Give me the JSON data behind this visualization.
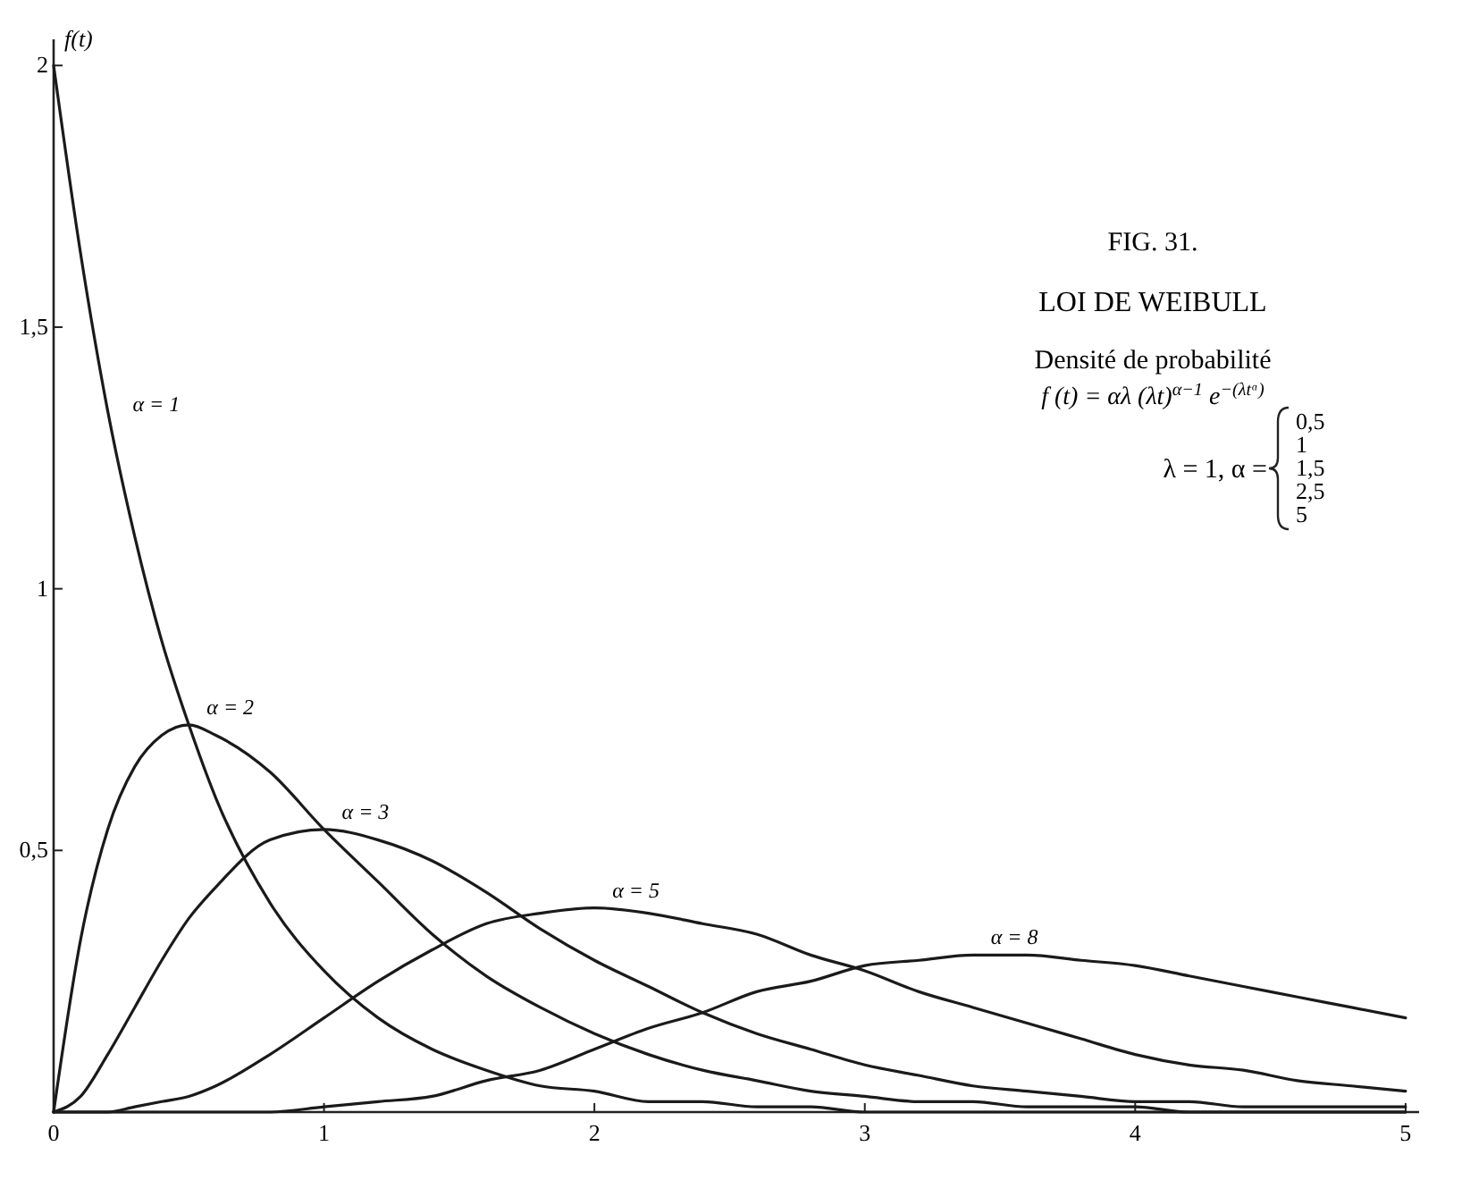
{
  "chart_data": {
    "type": "line",
    "title": "LOI DE WEIBULL",
    "subtitle": "Densité de probabilité",
    "ylabel": "f(t)",
    "x": [
      0,
      0.1,
      0.2,
      0.3,
      0.4,
      0.5,
      0.6,
      0.8,
      1,
      1.2,
      1.4,
      1.6,
      1.8,
      2,
      2.2,
      2.4,
      2.6,
      2.8,
      3,
      3.2,
      3.4,
      3.6,
      3.8,
      4,
      4.2,
      4.4,
      4.6,
      4.8,
      5
    ],
    "series": [
      {
        "name": "α = 1",
        "color": "#1a1a1a",
        "values": [
          2,
          1.64,
          1.34,
          1.1,
          0.9,
          0.74,
          0.6,
          0.4,
          0.27,
          0.18,
          0.12,
          0.08,
          0.05,
          0.04,
          0.02,
          0.02,
          0.01,
          0.01,
          0,
          0,
          0,
          0,
          0,
          0,
          0,
          0,
          0,
          0,
          0
        ]
      },
      {
        "name": "α = 2",
        "color": "#1a1a1a",
        "values": [
          0,
          0.33,
          0.54,
          0.66,
          0.72,
          0.74,
          0.72,
          0.65,
          0.54,
          0.44,
          0.34,
          0.26,
          0.2,
          0.15,
          0.11,
          0.08,
          0.06,
          0.04,
          0.03,
          0.02,
          0.02,
          0.01,
          0.01,
          0.01,
          0,
          0,
          0,
          0,
          0
        ]
      },
      {
        "name": "α = 3",
        "color": "#1a1a1a",
        "values": [
          0,
          0.03,
          0.11,
          0.2,
          0.29,
          0.37,
          0.43,
          0.52,
          0.54,
          0.52,
          0.48,
          0.42,
          0.35,
          0.29,
          0.24,
          0.19,
          0.15,
          0.12,
          0.09,
          0.07,
          0.05,
          0.04,
          0.03,
          0.02,
          0.02,
          0.01,
          0.01,
          0.01,
          0.01
        ]
      },
      {
        "name": "α = 5",
        "color": "#1a1a1a",
        "values": [
          0,
          0,
          0,
          0.01,
          0.02,
          0.03,
          0.05,
          0.11,
          0.18,
          0.25,
          0.31,
          0.36,
          0.38,
          0.39,
          0.38,
          0.36,
          0.34,
          0.3,
          0.27,
          0.23,
          0.2,
          0.17,
          0.14,
          0.11,
          0.09,
          0.08,
          0.06,
          0.05,
          0.04
        ]
      },
      {
        "name": "α = 8",
        "color": "#1a1a1a",
        "values": [
          0,
          0,
          0,
          0,
          0,
          0,
          0,
          0,
          0.01,
          0.02,
          0.03,
          0.06,
          0.08,
          0.12,
          0.16,
          0.19,
          0.23,
          0.25,
          0.28,
          0.29,
          0.3,
          0.3,
          0.29,
          0.28,
          0.26,
          0.24,
          0.22,
          0.2,
          0.18
        ]
      }
    ],
    "xlim": [
      0,
      5.05
    ],
    "ylim": [
      0,
      2.05
    ],
    "xticks": [
      0,
      1,
      2,
      3,
      4,
      5
    ],
    "yticks": [
      {
        "value": 0.5,
        "label": "0,5"
      },
      {
        "value": 1,
        "label": "1"
      },
      {
        "value": 1.5,
        "label": "1,5"
      },
      {
        "value": 2,
        "label": "2"
      }
    ],
    "grid": false,
    "marker": "none",
    "line_style": "solid",
    "annotations": [
      "FIG. 31.",
      "f (t) = αλ (λt)$^{α−1}$ e$^{−(λtᵅ)}$",
      "λ = 1, α =",
      "0,5",
      "1",
      "1,5",
      "2,5",
      "5"
    ]
  }
}
